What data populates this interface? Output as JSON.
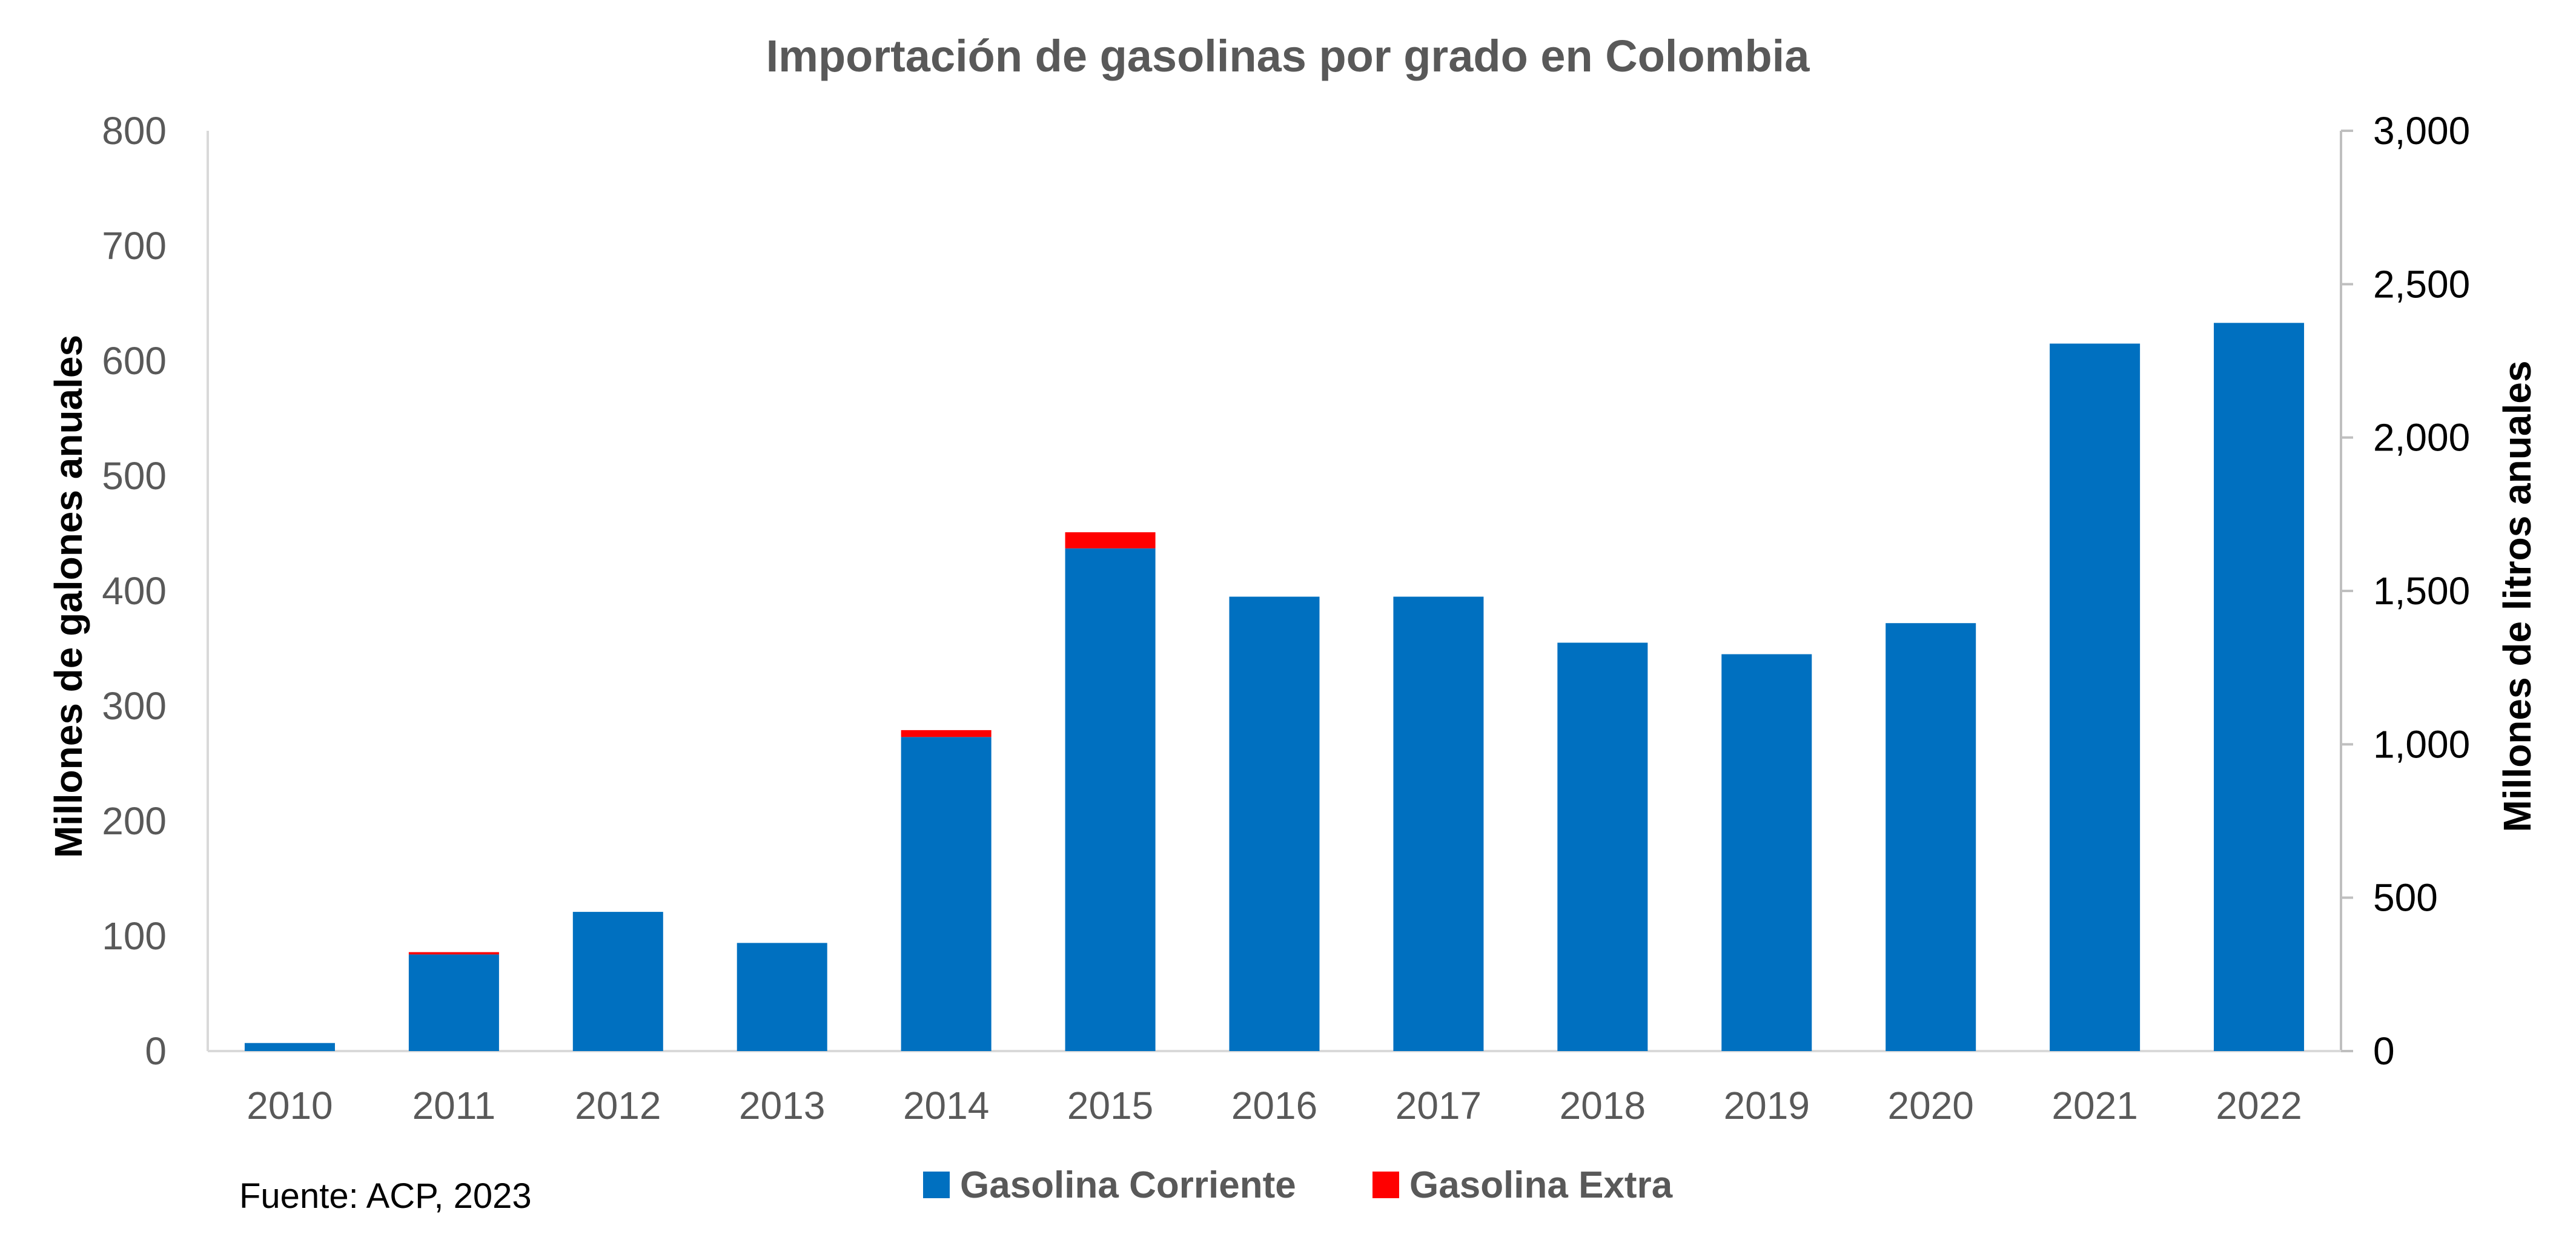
{
  "chart_data": {
    "type": "bar",
    "stacked": true,
    "title": "Importación de gasolinas por grado en Colombia",
    "ylabel": "Millones de galones anuales",
    "y2label": "Millones de litros anuales",
    "ylim": [
      0,
      800
    ],
    "y2lim": [
      0,
      3000
    ],
    "yticks": [
      "0",
      "100",
      "200",
      "300",
      "400",
      "500",
      "600",
      "700",
      "800"
    ],
    "y2ticks": [
      "0",
      "500",
      "1,000",
      "1,500",
      "2,000",
      "2,500",
      "3,000"
    ],
    "categories": [
      "2010",
      "2011",
      "2012",
      "2013",
      "2014",
      "2015",
      "2016",
      "2017",
      "2018",
      "2019",
      "2020",
      "2021",
      "2022"
    ],
    "series": [
      {
        "name": "Gasolina Corriente",
        "color": "#0070C0",
        "values": [
          7,
          84,
          121,
          94,
          273,
          437,
          395,
          395,
          355,
          345,
          372,
          615,
          633
        ]
      },
      {
        "name": "Gasolina Extra",
        "color": "#FF0000",
        "values": [
          0,
          2,
          0,
          0,
          6,
          14,
          0,
          0,
          0,
          0,
          0,
          0,
          0
        ]
      }
    ],
    "legend_position": "bottom",
    "grid": false
  },
  "source_note": "Fuente: ACP, 2023"
}
